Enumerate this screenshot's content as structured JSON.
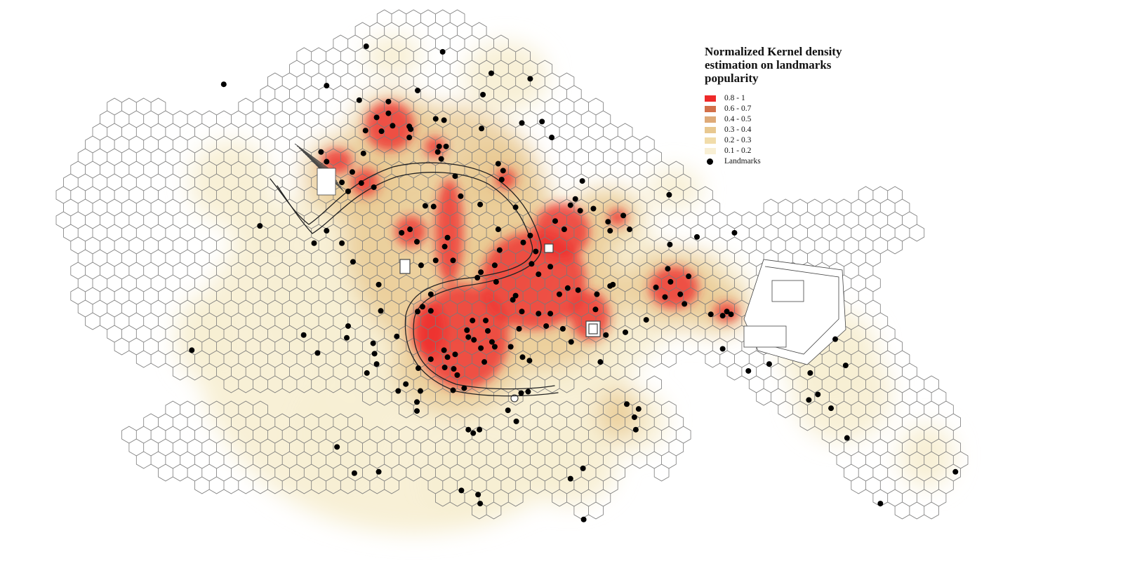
{
  "legend": {
    "title": "Normalized Kernel density\nestimation on landmarks\npopularity",
    "classes": [
      {
        "label": "0.8 - 1",
        "color": "#ee2a2a"
      },
      {
        "label": "0.6 - 0.7",
        "color": "#d2704a"
      },
      {
        "label": "0.4 - 0.5",
        "color": "#deaa78"
      },
      {
        "label": "0.3 - 0.4",
        "color": "#e8c890"
      },
      {
        "label": "0.2 - 0.3",
        "color": "#f1dcaa"
      },
      {
        "label": "0.1 - 0.2",
        "color": "#f8efd4"
      }
    ],
    "landmarks_label": "Landmarks"
  },
  "colors": {
    "hex_stroke": "#7a7a7a",
    "landmark": "#000000",
    "canal": "#222222",
    "background": "#ffffff"
  },
  "density": {
    "value_range": [
      0,
      1
    ],
    "scale": "normalized kernel density"
  }
}
